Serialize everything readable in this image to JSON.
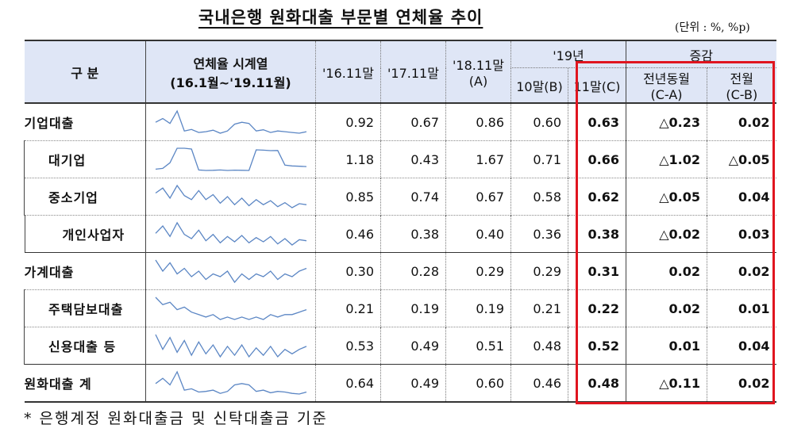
{
  "title": "국내은행 원화대출 부문별 연체율 추이",
  "unit": "(단위 : %, %p)",
  "header": {
    "category": "구  분",
    "series_title": "연체율 시계열",
    "series_range": "(16.1월~'19.11월)",
    "nov16": "'16.11말",
    "nov17": "'17.11말",
    "nov18_line1": "'18.11말",
    "nov18_line2": "(A)",
    "y19": "'19년",
    "oct19": "10말(B)",
    "nov19": "11말(C)",
    "change": "증감",
    "yoy_line1": "전년동월",
    "yoy_line2": "(C-A)",
    "mom_line1": "전월",
    "mom_line2": "(C-B)"
  },
  "rows": [
    {
      "label": "기업대출",
      "v16": "0.92",
      "v17": "0.67",
      "v18": "0.86",
      "oct": "0.60",
      "nov": "0.63",
      "yoy": "△0.23",
      "mom": "0.02",
      "spark": [
        0.85,
        0.95,
        0.82,
        1.15,
        0.62,
        0.66,
        0.58,
        0.6,
        0.64,
        0.56,
        0.62,
        0.8,
        0.85,
        0.82,
        0.62,
        0.65,
        0.58,
        0.62,
        0.6,
        0.58,
        0.56,
        0.6
      ]
    },
    {
      "label": "대기업",
      "v16": "1.18",
      "v17": "0.43",
      "v18": "1.67",
      "oct": "0.71",
      "nov": "0.66",
      "yoy": "△1.02",
      "mom": "△0.05",
      "spark": [
        0.5,
        0.55,
        0.9,
        1.8,
        1.8,
        1.75,
        0.45,
        0.42,
        0.43,
        0.45,
        0.42,
        0.44,
        0.43,
        0.42,
        1.7,
        1.68,
        1.65,
        1.66,
        0.75,
        0.7,
        0.68,
        0.66
      ]
    },
    {
      "label": "중소기업",
      "v16": "0.85",
      "v17": "0.74",
      "v18": "0.67",
      "oct": "0.58",
      "nov": "0.62",
      "yoy": "△0.05",
      "mom": "0.04",
      "spark": [
        0.85,
        0.95,
        0.75,
        1.0,
        0.8,
        0.72,
        0.9,
        0.72,
        0.82,
        0.65,
        0.78,
        0.62,
        0.75,
        0.6,
        0.72,
        0.62,
        0.7,
        0.58,
        0.66,
        0.56,
        0.64,
        0.62
      ]
    },
    {
      "label": "개인사업자",
      "v16": "0.46",
      "v17": "0.38",
      "v18": "0.40",
      "oct": "0.36",
      "nov": "0.38",
      "yoy": "△0.02",
      "mom": "0.03",
      "spark": [
        0.45,
        0.52,
        0.42,
        0.55,
        0.44,
        0.4,
        0.48,
        0.38,
        0.44,
        0.36,
        0.42,
        0.37,
        0.43,
        0.36,
        0.41,
        0.37,
        0.42,
        0.35,
        0.4,
        0.34,
        0.39,
        0.38
      ]
    },
    {
      "label": "가계대출",
      "v16": "0.30",
      "v17": "0.28",
      "v18": "0.29",
      "oct": "0.29",
      "nov": "0.31",
      "yoy": "0.02",
      "mom": "0.02",
      "spark": [
        0.34,
        0.3,
        0.33,
        0.29,
        0.31,
        0.28,
        0.3,
        0.27,
        0.29,
        0.28,
        0.3,
        0.26,
        0.29,
        0.27,
        0.29,
        0.28,
        0.3,
        0.27,
        0.29,
        0.28,
        0.3,
        0.31
      ]
    },
    {
      "label": "주택담보대출",
      "v16": "0.21",
      "v17": "0.19",
      "v18": "0.19",
      "oct": "0.21",
      "nov": "0.22",
      "yoy": "0.02",
      "mom": "0.01",
      "spark": [
        0.27,
        0.24,
        0.25,
        0.22,
        0.23,
        0.21,
        0.2,
        0.19,
        0.2,
        0.18,
        0.19,
        0.18,
        0.19,
        0.18,
        0.19,
        0.18,
        0.2,
        0.19,
        0.2,
        0.2,
        0.21,
        0.22
      ]
    },
    {
      "label": "신용대출 등",
      "v16": "0.53",
      "v17": "0.49",
      "v18": "0.51",
      "oct": "0.48",
      "nov": "0.52",
      "yoy": "0.01",
      "mom": "0.04",
      "spark": [
        0.6,
        0.5,
        0.58,
        0.48,
        0.56,
        0.46,
        0.55,
        0.47,
        0.53,
        0.45,
        0.52,
        0.46,
        0.53,
        0.45,
        0.51,
        0.46,
        0.52,
        0.45,
        0.5,
        0.47,
        0.5,
        0.52
      ]
    },
    {
      "label": "원화대출 계",
      "v16": "0.64",
      "v17": "0.49",
      "v18": "0.60",
      "oct": "0.46",
      "nov": "0.48",
      "yoy": "△0.11",
      "mom": "0.02",
      "spark": [
        0.6,
        0.68,
        0.58,
        0.78,
        0.5,
        0.52,
        0.47,
        0.48,
        0.5,
        0.45,
        0.48,
        0.58,
        0.6,
        0.58,
        0.48,
        0.5,
        0.46,
        0.48,
        0.47,
        0.45,
        0.44,
        0.47
      ]
    }
  ],
  "footnote": "* 은행계정 원화대출금 및 신탁대출금 기준",
  "colors": {
    "header_bg": "#dfe6f6",
    "sparkline": "#5b86c4",
    "highlight_box": "#e0151f"
  }
}
